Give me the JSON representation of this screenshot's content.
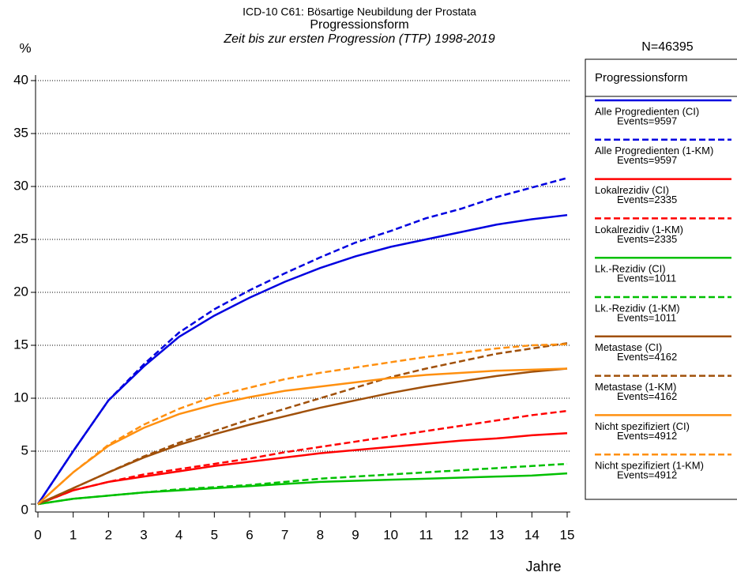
{
  "chart_data": {
    "type": "line",
    "title": "ICD-10 C61: Bösartige Neubildung der Prostata",
    "subtitle": "Progressionsform",
    "subtitle2": "Zeit bis zur ersten Progression (TTP) 1998-2019",
    "n_label": "N=46395",
    "y_label": "%",
    "x_label": "Jahre",
    "legend_title": "Progressionsform",
    "grid": true,
    "legend": "right",
    "x": [
      0,
      1,
      2,
      3,
      4,
      5,
      6,
      7,
      8,
      9,
      10,
      11,
      12,
      13,
      14,
      15
    ],
    "xlim": [
      0,
      15
    ],
    "xticks": [
      0,
      1,
      2,
      3,
      4,
      5,
      6,
      7,
      8,
      9,
      10,
      11,
      12,
      13,
      14,
      15
    ],
    "ylim": [
      0,
      40
    ],
    "yticks": [
      0,
      5,
      10,
      15,
      20,
      25,
      30,
      35,
      40
    ],
    "series": [
      {
        "name": "Alle Progredienten (CI)",
        "events": "Events=9597",
        "color": "#0000e0",
        "dashed": false,
        "values": [
          0,
          5,
          9.8,
          13,
          15.8,
          17.8,
          19.5,
          21,
          22.3,
          23.4,
          24.3,
          25,
          25.7,
          26.4,
          26.9,
          27.3
        ]
      },
      {
        "name": "Alle Progredienten (1-KM)",
        "events": "Events=9597",
        "color": "#0000e0",
        "dashed": true,
        "values": [
          0,
          5,
          9.8,
          13.2,
          16.2,
          18.4,
          20.2,
          21.8,
          23.3,
          24.7,
          25.8,
          27,
          27.9,
          29,
          29.9,
          30.8
        ]
      },
      {
        "name": "Lokalrezidiv (CI)",
        "events": "Events=2335",
        "color": "#ff0000",
        "dashed": false,
        "values": [
          0,
          1.3,
          2.1,
          2.6,
          3.1,
          3.6,
          4,
          4.4,
          4.8,
          5.1,
          5.4,
          5.7,
          6,
          6.2,
          6.5,
          6.7
        ]
      },
      {
        "name": "Lokalrezidiv (1-KM)",
        "events": "Events=2335",
        "color": "#ff0000",
        "dashed": true,
        "values": [
          0,
          1.3,
          2.1,
          2.8,
          3.3,
          3.8,
          4.3,
          4.9,
          5.4,
          5.9,
          6.4,
          6.9,
          7.4,
          7.9,
          8.4,
          8.8
        ]
      },
      {
        "name": "Lk.-Rezidiv (CI)",
        "events": "Events=1011",
        "color": "#00c000",
        "dashed": false,
        "values": [
          0,
          0.5,
          0.8,
          1.1,
          1.3,
          1.5,
          1.7,
          1.9,
          2.1,
          2.2,
          2.3,
          2.4,
          2.5,
          2.6,
          2.7,
          2.9
        ]
      },
      {
        "name": "Lk.-Rezidiv (1-KM)",
        "events": "Events=1011",
        "color": "#00c000",
        "dashed": true,
        "values": [
          0,
          0.5,
          0.8,
          1.1,
          1.4,
          1.6,
          1.8,
          2.1,
          2.4,
          2.6,
          2.8,
          3,
          3.2,
          3.4,
          3.6,
          3.8
        ]
      },
      {
        "name": "Metastase (CI)",
        "events": "Events=4162",
        "color": "#a0500a",
        "dashed": false,
        "values": [
          0,
          1.5,
          3,
          4.4,
          5.6,
          6.6,
          7.5,
          8.3,
          9.1,
          9.8,
          10.5,
          11.1,
          11.6,
          12.1,
          12.5,
          12.8
        ]
      },
      {
        "name": "Metastase (1-KM)",
        "events": "Events=4162",
        "color": "#a0500a",
        "dashed": true,
        "values": [
          0,
          1.5,
          3,
          4.5,
          5.8,
          6.9,
          8,
          9,
          10,
          11,
          12,
          12.8,
          13.5,
          14.2,
          14.7,
          15.2
        ]
      },
      {
        "name": "Nicht spezifiziert (CI)",
        "events": "Events=4912",
        "color": "#ff9010",
        "dashed": false,
        "values": [
          0,
          3,
          5.5,
          7.2,
          8.5,
          9.4,
          10.1,
          10.7,
          11.1,
          11.5,
          11.9,
          12.2,
          12.4,
          12.6,
          12.7,
          12.8
        ]
      },
      {
        "name": "Nicht spezifiziert (1-KM)",
        "events": "Events=4912",
        "color": "#ff9010",
        "dashed": true,
        "values": [
          0,
          3,
          5.6,
          7.5,
          9,
          10.2,
          11,
          11.8,
          12.4,
          12.9,
          13.4,
          13.9,
          14.3,
          14.7,
          15,
          15.1
        ]
      }
    ]
  }
}
